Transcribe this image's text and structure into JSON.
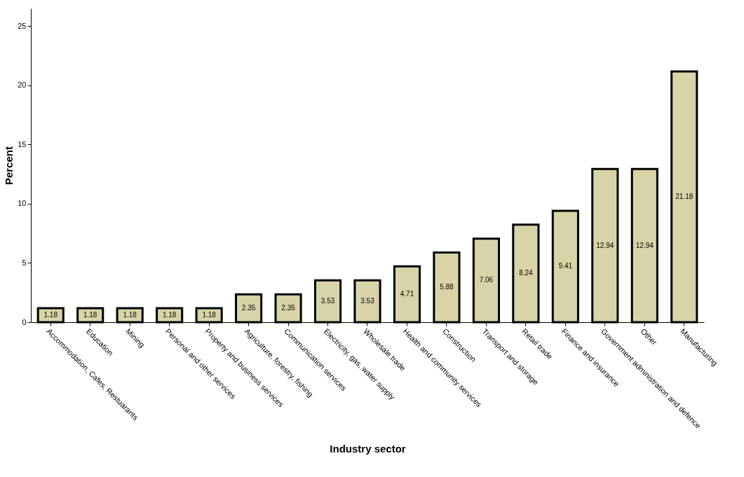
{
  "chart_data": {
    "type": "bar",
    "xlabel": "Industry sector",
    "ylabel": "Percent",
    "categories": [
      "Accommodation, Cafes, Restuarants",
      "Education",
      "Mining",
      "Personal and other services",
      "Property and business services",
      "Agriculture, forestry, fishing",
      "Communication services",
      "Electricity, gas, water supply",
      "Wholesale trade",
      "Health and community services",
      "Construction",
      "Transport and storage",
      "Retail trade",
      "Finance and insurance",
      "Government administration and defence",
      "Other",
      "Manufacturing"
    ],
    "values": [
      1.18,
      1.18,
      1.18,
      1.18,
      1.18,
      2.35,
      2.35,
      3.53,
      3.53,
      4.71,
      5.88,
      7.06,
      8.24,
      9.41,
      12.94,
      12.94,
      21.18
    ],
    "color": "#d9d4a8",
    "ylim": [
      0,
      26.5
    ],
    "yticks": [
      0,
      5,
      10,
      15,
      20,
      25
    ],
    "grid": false,
    "data_labels": true
  }
}
